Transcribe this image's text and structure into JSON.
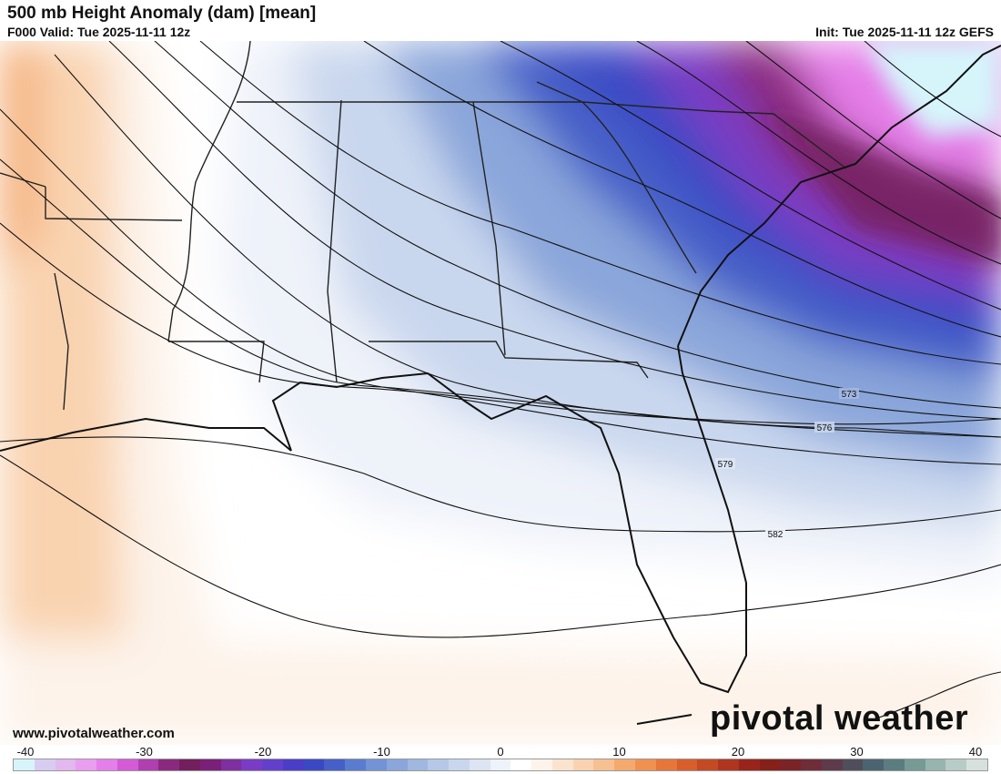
{
  "header": {
    "title": "500 mb Height Anomaly (dam) [mean]",
    "valid": "F000 Valid: Tue 2025-11-11 12z",
    "init": "Init: Tue 2025-11-11 12z GEFS"
  },
  "map": {
    "contour_labels": [
      "573",
      "576",
      "579",
      "582"
    ]
  },
  "footer": {
    "website": "www.pivotalweather.com",
    "brand": "pivotal weather"
  },
  "colorbar": {
    "tick_labels": [
      "-40",
      "-30",
      "-20",
      "-10",
      "0",
      "10",
      "20",
      "30",
      "40"
    ],
    "range": [
      -40,
      40
    ],
    "colors": [
      "#d6f5fb",
      "#d8cdf0",
      "#e3b7ef",
      "#ea9ef0",
      "#e57ee8",
      "#d45ad6",
      "#b03fb0",
      "#8a2a7f",
      "#731f5e",
      "#7a2078",
      "#7e2fa0",
      "#7a3cc4",
      "#6240cc",
      "#4a3ec8",
      "#3b48c4",
      "#4660c8",
      "#5a7ccf",
      "#7393d5",
      "#8aa6da",
      "#a0b7e0",
      "#b5c8e7",
      "#c9d7ee",
      "#dde5f4",
      "#eef2f9",
      "#ffffff",
      "#fdf3ea",
      "#fbe4cf",
      "#f9d3b0",
      "#f7c091",
      "#f4aa6f",
      "#ef9150",
      "#e6763a",
      "#d85e2c",
      "#c44a25",
      "#ae3620",
      "#97251c",
      "#862119",
      "#7a2428",
      "#6f2d3a",
      "#5e3b4a",
      "#4f4f5c",
      "#4c6470",
      "#5b7d80",
      "#769a96",
      "#96b5ae",
      "#b7ccc6",
      "#d6e1dd"
    ]
  }
}
